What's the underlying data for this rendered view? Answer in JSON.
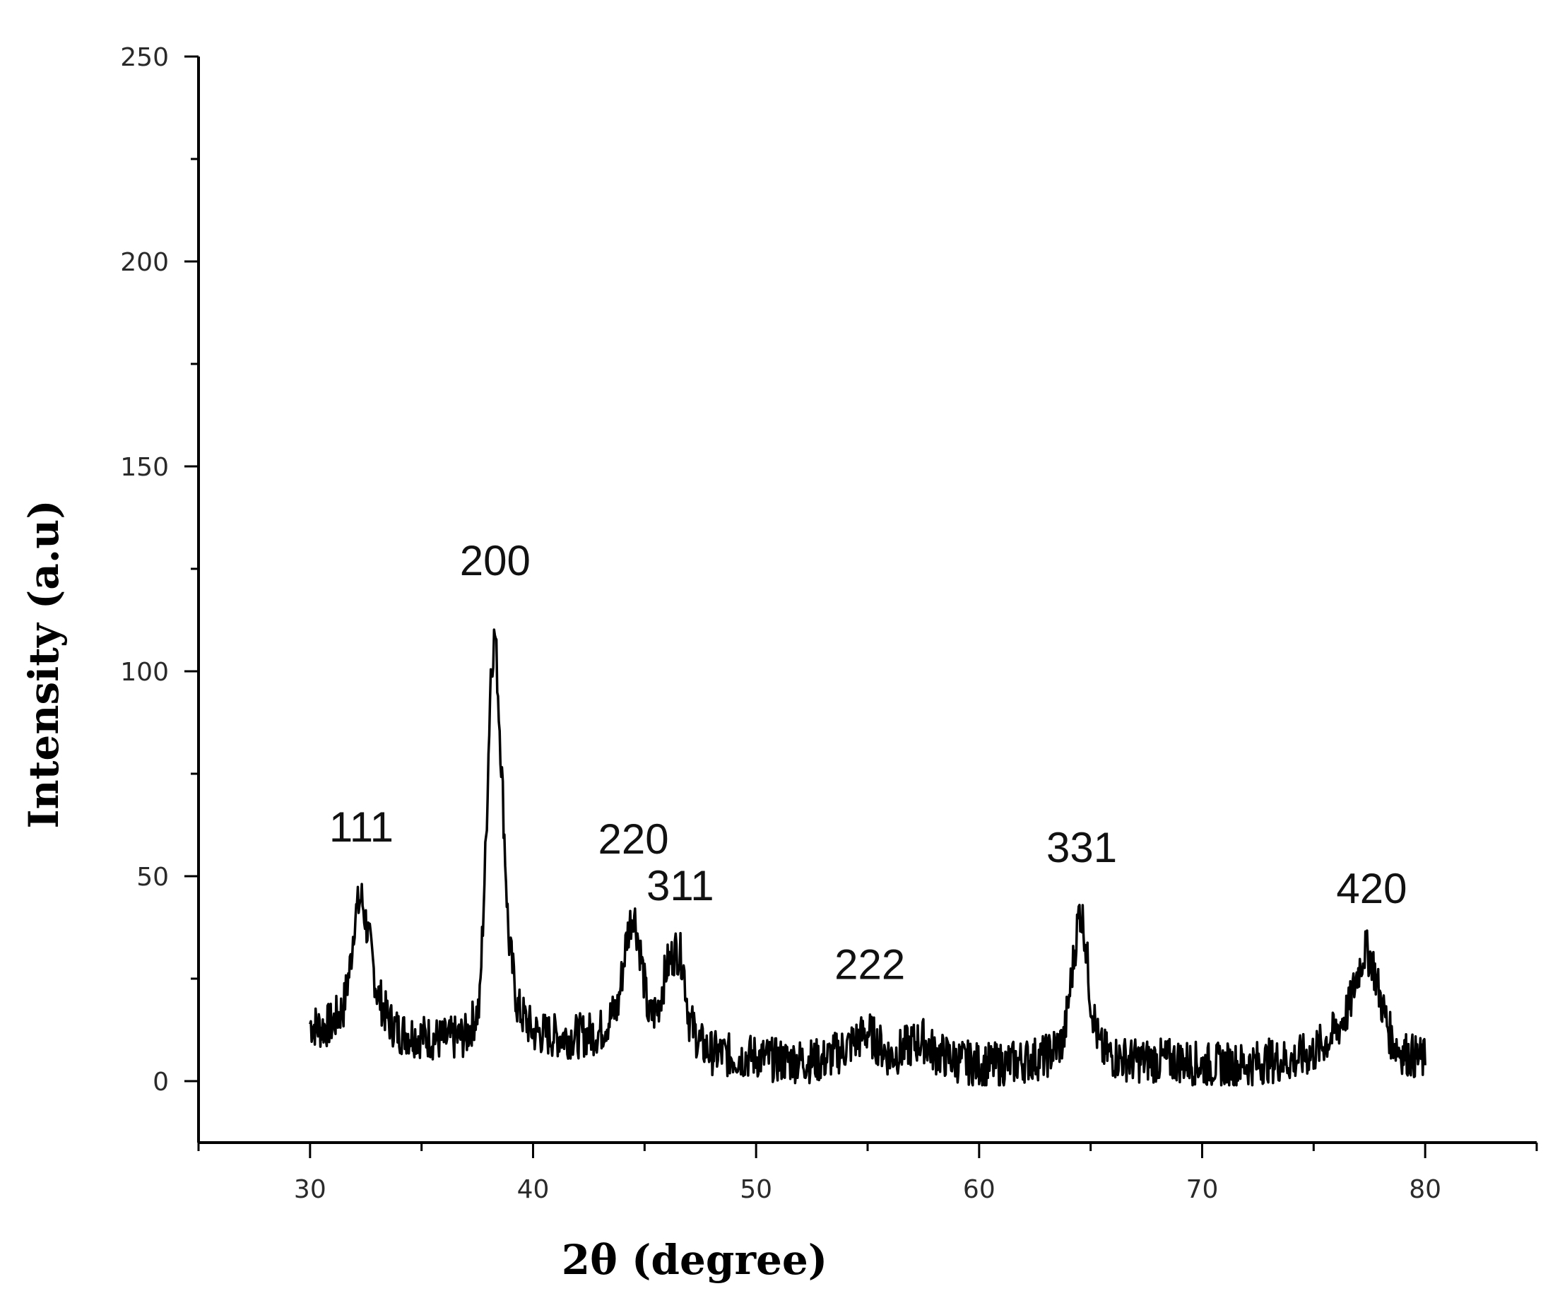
{
  "chart_data": {
    "type": "line",
    "title": "",
    "xlabel": "2θ (degree)",
    "ylabel": "Intensity (a.u)",
    "xlim": [
      25,
      85
    ],
    "ylim": [
      -15,
      250
    ],
    "xticks": [
      30,
      40,
      50,
      60,
      70,
      80
    ],
    "yticks": [
      0,
      50,
      100,
      150,
      200,
      250
    ],
    "grid": false,
    "legend": "none",
    "line_color": "#000000",
    "series": [
      {
        "x": [
          30.0,
          30.5,
          31.0,
          31.5,
          31.8,
          32.0,
          32.3,
          32.6,
          33.0,
          33.5,
          34.0,
          35.0,
          36.0,
          37.0,
          37.6,
          37.9,
          38.1,
          38.3,
          38.6,
          38.9,
          39.3,
          40.0,
          41.0,
          42.0,
          43.0,
          43.8,
          44.2,
          44.5,
          44.8,
          45.2,
          45.6,
          46.0,
          46.4,
          46.7,
          47.0,
          47.5,
          48.0,
          49.0,
          50.0,
          51.0,
          52.0,
          53.0,
          54.0,
          54.5,
          55.0,
          55.5,
          56.0,
          57.0,
          57.5,
          58.0,
          59.0,
          60.0,
          61.0,
          62.0,
          63.0,
          63.8,
          64.2,
          64.5,
          64.7,
          65.0,
          65.4,
          66.0,
          67.0,
          68.0,
          69.0,
          70.0,
          71.0,
          72.0,
          73.0,
          74.0,
          75.0,
          76.0,
          76.6,
          77.0,
          77.3,
          77.6,
          78.0,
          78.5,
          79.0,
          79.5,
          80.0
        ],
        "y": [
          14,
          13,
          14,
          18,
          28,
          40,
          45,
          36,
          22,
          15,
          12,
          11,
          10,
          11,
          18,
          60,
          100,
          110,
          75,
          35,
          18,
          12,
          11,
          11,
          12,
          18,
          35,
          42,
          32,
          15,
          18,
          28,
          32,
          30,
          15,
          9,
          7,
          6,
          6,
          5,
          5,
          5,
          8,
          10,
          12,
          9,
          6,
          9,
          10,
          7,
          5,
          4,
          4,
          5,
          6,
          10,
          28,
          42,
          38,
          20,
          8,
          6,
          5,
          5,
          5,
          4,
          4,
          4,
          5,
          5,
          7,
          12,
          18,
          27,
          32,
          30,
          20,
          10,
          7,
          6,
          5
        ]
      }
    ],
    "annotations": [
      {
        "text": "111",
        "x": 32.3
      },
      {
        "text": "200",
        "x": 38.3
      },
      {
        "text": "220",
        "x": 44.5
      },
      {
        "text": "311",
        "x": 46.6
      },
      {
        "text": "222",
        "x": 55.1
      },
      {
        "text": "331",
        "x": 64.6
      },
      {
        "text": "420",
        "x": 77.6
      }
    ]
  }
}
